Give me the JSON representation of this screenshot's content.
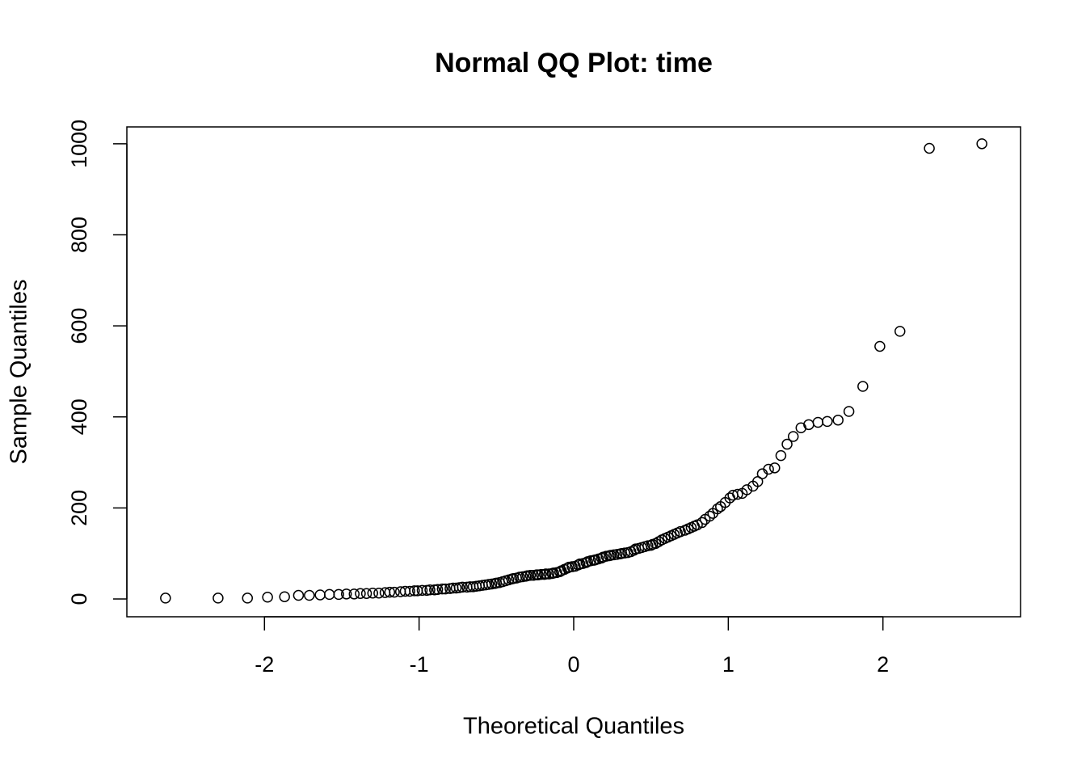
{
  "chart_data": {
    "type": "scatter",
    "title": "Normal QQ Plot: time",
    "x_label": "Theoretical Quantiles",
    "y_label": "Sample Quantiles",
    "color": "#000000",
    "xlim": [
      -2.89,
      2.89
    ],
    "ylim": [
      -39,
      1037
    ],
    "xticks": [
      -2,
      -1,
      0,
      1,
      2
    ],
    "yticks": [
      0,
      200,
      400,
      600,
      800,
      1000
    ],
    "grid": false,
    "x": [
      -2.64,
      -2.3,
      -2.11,
      -1.98,
      -1.87,
      -1.78,
      -1.71,
      -1.64,
      -1.58,
      -1.52,
      -1.47,
      -1.42,
      -1.38,
      -1.34,
      -1.3,
      -1.26,
      -1.22,
      -1.19,
      -1.16,
      -1.12,
      -1.09,
      -1.06,
      -1.03,
      -1.01,
      -0.98,
      -0.95,
      -0.93,
      -0.9,
      -0.88,
      -0.85,
      -0.83,
      -0.8,
      -0.78,
      -0.76,
      -0.74,
      -0.72,
      -0.69,
      -0.67,
      -0.65,
      -0.63,
      -0.61,
      -0.59,
      -0.57,
      -0.55,
      -0.53,
      -0.51,
      -0.5,
      -0.48,
      -0.46,
      -0.44,
      -0.42,
      -0.4,
      -0.39,
      -0.37,
      -0.35,
      -0.33,
      -0.31,
      -0.3,
      -0.28,
      -0.26,
      -0.24,
      -0.23,
      -0.21,
      -0.19,
      -0.18,
      -0.16,
      -0.14,
      -0.13,
      -0.11,
      -0.09,
      -0.08,
      -0.06,
      -0.04,
      -0.03,
      -0.01,
      0.01,
      0.03,
      0.04,
      0.06,
      0.08,
      0.09,
      0.11,
      0.13,
      0.14,
      0.16,
      0.18,
      0.19,
      0.21,
      0.23,
      0.24,
      0.26,
      0.28,
      0.3,
      0.31,
      0.33,
      0.35,
      0.37,
      0.39,
      0.4,
      0.42,
      0.44,
      0.46,
      0.48,
      0.5,
      0.51,
      0.53,
      0.55,
      0.57,
      0.59,
      0.61,
      0.63,
      0.65,
      0.67,
      0.69,
      0.72,
      0.74,
      0.76,
      0.78,
      0.8,
      0.83,
      0.85,
      0.88,
      0.9,
      0.93,
      0.95,
      0.98,
      1.01,
      1.03,
      1.06,
      1.09,
      1.12,
      1.16,
      1.19,
      1.22,
      1.26,
      1.3,
      1.34,
      1.38,
      1.42,
      1.47,
      1.52,
      1.58,
      1.64,
      1.71,
      1.78,
      1.87,
      1.98,
      2.11,
      2.3,
      2.64
    ],
    "values": [
      2,
      2,
      2,
      4,
      5,
      8,
      8,
      9,
      10,
      10,
      11,
      11,
      12,
      12,
      13,
      13,
      14,
      15,
      15,
      16,
      17,
      17,
      18,
      18,
      19,
      19,
      20,
      20,
      21,
      22,
      22,
      23,
      24,
      24,
      25,
      26,
      26,
      27,
      27,
      28,
      29,
      30,
      31,
      32,
      33,
      34,
      35,
      36,
      38,
      40,
      42,
      44,
      45,
      46,
      48,
      49,
      50,
      51,
      52,
      52,
      53,
      53,
      54,
      54,
      55,
      55,
      56,
      57,
      58,
      60,
      62,
      65,
      68,
      70,
      71,
      72,
      75,
      77,
      78,
      80,
      82,
      84,
      85,
      86,
      88,
      90,
      92,
      94,
      95,
      96,
      97,
      98,
      99,
      100,
      101,
      102,
      104,
      107,
      110,
      111,
      113,
      115,
      117,
      118,
      120,
      122,
      126,
      130,
      133,
      136,
      139,
      142,
      145,
      148,
      151,
      154,
      157,
      160,
      163,
      168,
      175,
      182,
      188,
      198,
      203,
      212,
      222,
      228,
      230,
      232,
      240,
      248,
      258,
      275,
      285,
      288,
      315,
      340,
      357,
      376,
      383,
      388,
      390,
      393,
      412,
      467,
      555,
      588,
      990,
      1000
    ]
  }
}
